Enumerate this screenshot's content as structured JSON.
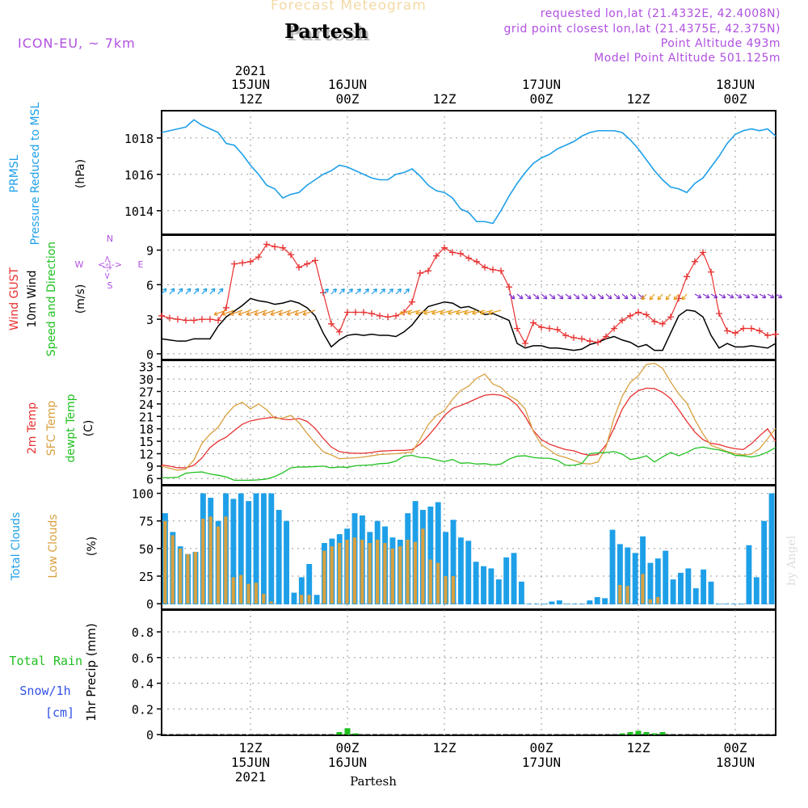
{
  "header": {
    "super_title": "Forecast Meteogram",
    "location": "Partesh",
    "model": "ICON-EU, ~ 7km",
    "requested": "requested lon,lat (21.4332E, 42.4008N)",
    "grid_point": "grid point closest lon,lat (21.4375E, 42.375N)",
    "point_altitude": "Point Altitude 493m",
    "model_altitude": "Model Point Altitude 501.125m"
  },
  "colors": {
    "pressure": "#1ea0e8",
    "gust": "#e83030",
    "wind": "#000000",
    "dir_label": "#20c020",
    "temp2m": "#e83030",
    "sfc": "#d8a040",
    "dewpt": "#20c020",
    "total": "#1ea0e8",
    "low": "#d8a040",
    "rain": "#20c020",
    "snow": "#3050e8",
    "compass": "#b050e0"
  },
  "time_axis": {
    "top_ticks": [
      {
        "line1": "2021",
        "line2": "15JUN",
        "line3": "12Z"
      },
      {
        "line1": "",
        "line2": "16JUN",
        "line3": "00Z"
      },
      {
        "line1": "",
        "line2": "",
        "line3": "12Z"
      },
      {
        "line1": "",
        "line2": "17JUN",
        "line3": "00Z"
      },
      {
        "line1": "",
        "line2": "",
        "line3": "12Z"
      },
      {
        "line1": "",
        "line2": "18JUN",
        "line3": "00Z"
      }
    ],
    "bottom_ticks": [
      {
        "line1": "12Z",
        "line2": "15JUN",
        "line3": "2021"
      },
      {
        "line1": "00Z",
        "line2": "16JUN",
        "line3": ""
      },
      {
        "line1": "12Z",
        "line2": "",
        "line3": ""
      },
      {
        "line1": "00Z",
        "line2": "17JUN",
        "line3": ""
      },
      {
        "line1": "12Z",
        "line2": "",
        "line3": ""
      },
      {
        "line1": "00Z",
        "line2": "18JUN",
        "line3": ""
      }
    ],
    "tick_hours": [
      12,
      24,
      36,
      48,
      60,
      72
    ],
    "x_range_hours": [
      1,
      77
    ],
    "footer_label": "Partesh"
  },
  "watermark": "by Angel",
  "chart_data": [
    {
      "type": "line",
      "id": "pressure",
      "ylabel_lines": [
        "PRMSL",
        "Pressure Reduced to MSL",
        "(hPa)"
      ],
      "yticks": [
        1014,
        1016,
        1018
      ],
      "ylim": [
        1012.7,
        1019.5
      ],
      "series": [
        {
          "name": "PRMSL",
          "values": [
            1018.3,
            1018.4,
            1018.5,
            1018.6,
            1019.0,
            1018.7,
            1018.5,
            1018.3,
            1017.7,
            1017.6,
            1017.1,
            1016.5,
            1016.0,
            1015.4,
            1015.2,
            1014.7,
            1014.9,
            1015.0,
            1015.4,
            1015.7,
            1016.0,
            1016.2,
            1016.5,
            1016.4,
            1016.2,
            1016.0,
            1015.8,
            1015.7,
            1015.7,
            1016.0,
            1016.1,
            1016.3,
            1015.9,
            1015.4,
            1015.1,
            1015.0,
            1014.7,
            1014.1,
            1013.9,
            1013.4,
            1013.4,
            1013.3,
            1014.0,
            1014.8,
            1015.5,
            1016.1,
            1016.6,
            1016.9,
            1017.1,
            1017.4,
            1017.6,
            1017.8,
            1018.1,
            1018.3,
            1018.4,
            1018.4,
            1018.4,
            1018.3,
            1017.9,
            1017.4,
            1016.8,
            1016.2,
            1015.7,
            1015.3,
            1015.2,
            1015.0,
            1015.5,
            1015.8,
            1016.4,
            1017.0,
            1017.7,
            1018.2,
            1018.4,
            1018.5,
            1018.4,
            1018.5,
            1018.1
          ]
        }
      ]
    },
    {
      "type": "line",
      "id": "wind",
      "ylabel_lines": [
        "Wind GUST",
        "10m Wind",
        "Speed and Direction",
        "(m/s)"
      ],
      "compass": [
        "N",
        "S",
        "W",
        "E",
        "<-|->"
      ],
      "yticks": [
        0,
        3,
        6,
        9
      ],
      "ylim": [
        -0.5,
        10.3
      ],
      "series": [
        {
          "name": "Wind GUST",
          "values": [
            3.3,
            3.1,
            3.0,
            2.9,
            2.9,
            3.0,
            3.0,
            2.9,
            4.0,
            7.8,
            7.9,
            8.0,
            8.4,
            9.5,
            9.3,
            9.2,
            8.6,
            7.5,
            7.8,
            8.1,
            5.3,
            2.6,
            1.9,
            3.6,
            3.6,
            3.6,
            3.5,
            3.3,
            3.2,
            3.3,
            3.6,
            4.5,
            7.0,
            7.2,
            8.5,
            9.2,
            8.8,
            8.7,
            8.3,
            8.0,
            7.5,
            7.3,
            7.2,
            5.8,
            2.2,
            0.9,
            2.7,
            2.3,
            2.2,
            2.1,
            1.6,
            1.4,
            1.3,
            1.1,
            1.0,
            1.5,
            2.2,
            2.9,
            3.3,
            3.6,
            3.4,
            2.8,
            2.6,
            3.2,
            4.8,
            6.7,
            8.0,
            8.8,
            7.1,
            3.5,
            2.0,
            1.8,
            2.2,
            2.2,
            2.0,
            1.6,
            1.7
          ]
        },
        {
          "name": "10m Wind",
          "values": [
            1.3,
            1.2,
            1.1,
            1.1,
            1.3,
            1.3,
            1.3,
            2.4,
            3.2,
            3.7,
            4.2,
            4.8,
            4.6,
            4.5,
            4.3,
            4.4,
            4.6,
            4.4,
            4.0,
            3.3,
            1.8,
            0.6,
            1.2,
            1.6,
            1.7,
            1.6,
            1.7,
            1.6,
            1.6,
            1.5,
            1.9,
            2.5,
            3.4,
            4.1,
            4.3,
            4.5,
            4.4,
            4.0,
            4.1,
            3.8,
            3.4,
            3.5,
            3.2,
            2.9,
            0.9,
            0.5,
            0.7,
            0.7,
            0.5,
            0.5,
            0.4,
            0.3,
            0.4,
            0.8,
            1.0,
            1.3,
            1.5,
            1.2,
            1.0,
            0.6,
            0.8,
            0.3,
            0.3,
            1.8,
            3.3,
            3.8,
            3.7,
            3.2,
            1.6,
            0.5,
            0.9,
            0.6,
            0.6,
            0.7,
            0.6,
            0.5,
            0.9
          ]
        }
      ]
    },
    {
      "type": "line",
      "id": "temperature",
      "ylabel_lines": [
        "2m Temp",
        "SFC Temp",
        "dewpt Temp",
        "(C)"
      ],
      "yticks": [
        6,
        9,
        12,
        15,
        18,
        21,
        24,
        27,
        30,
        33
      ],
      "ylim": [
        4.5,
        34.5
      ],
      "series": [
        {
          "name": "2m Temp",
          "values": [
            9.3,
            9.0,
            8.6,
            8.6,
            9.2,
            11.0,
            13.5,
            15.0,
            16.0,
            17.6,
            19.1,
            19.9,
            20.3,
            20.6,
            20.8,
            20.3,
            20.2,
            20.5,
            19.8,
            18.1,
            15.7,
            13.6,
            12.5,
            12.2,
            12.1,
            12.1,
            12.3,
            12.6,
            12.7,
            12.8,
            12.8,
            13.0,
            14.3,
            16.3,
            18.6,
            21.2,
            22.9,
            23.6,
            24.4,
            25.3,
            26.1,
            26.3,
            26.1,
            25.3,
            23.7,
            21.0,
            17.6,
            15.4,
            14.3,
            13.6,
            13.0,
            12.7,
            12.0,
            11.6,
            11.8,
            14.1,
            18.2,
            22.7,
            25.7,
            27.2,
            27.8,
            27.7,
            26.8,
            25.3,
            22.6,
            19.8,
            17.2,
            15.4,
            14.5,
            14.2,
            13.6,
            13.2,
            13.0,
            14.4,
            16.3,
            18.0,
            15.0
          ]
        },
        {
          "name": "SFC Temp",
          "values": [
            9.0,
            8.5,
            8.0,
            8.3,
            10.5,
            14.5,
            16.7,
            18.4,
            21.4,
            23.5,
            24.4,
            22.8,
            24.0,
            22.6,
            20.5,
            20.6,
            21.2,
            19.5,
            16.9,
            14.6,
            12.5,
            11.7,
            10.8,
            10.9,
            11.0,
            11.2,
            11.5,
            11.8,
            11.9,
            12.0,
            12.2,
            12.4,
            15.5,
            19.0,
            21.2,
            22.4,
            25.1,
            27.2,
            28.3,
            30.2,
            31.2,
            28.8,
            28.0,
            26.0,
            24.9,
            22.8,
            17.4,
            14.2,
            12.9,
            11.6,
            11.1,
            10.4,
            9.7,
            9.5,
            10.0,
            13.6,
            20.6,
            25.8,
            29.2,
            30.8,
            33.5,
            33.8,
            32.6,
            29.3,
            26.4,
            24.2,
            20.2,
            16.8,
            14.0,
            13.3,
            12.5,
            12.0,
            11.7,
            11.9,
            13.2,
            15.6,
            18.1
          ]
        },
        {
          "name": "dewpt Temp",
          "values": [
            6.2,
            6.2,
            6.3,
            7.3,
            7.5,
            7.6,
            7.1,
            6.8,
            6.4,
            5.6,
            5.6,
            5.6,
            5.7,
            5.9,
            6.5,
            7.4,
            8.6,
            8.8,
            8.8,
            8.9,
            9.0,
            8.6,
            8.8,
            8.7,
            9.1,
            9.2,
            9.3,
            9.6,
            9.7,
            10.2,
            11.4,
            11.6,
            11.1,
            11.0,
            10.5,
            10.1,
            10.6,
            9.7,
            9.8,
            9.5,
            9.6,
            9.3,
            9.5,
            10.7,
            11.4,
            11.5,
            11.1,
            10.9,
            10.9,
            10.4,
            9.2,
            9.2,
            9.6,
            12.0,
            12.2,
            12.3,
            12.5,
            11.9,
            10.6,
            10.9,
            11.5,
            10.0,
            11.2,
            12.3,
            11.5,
            12.3,
            13.3,
            13.6,
            13.2,
            12.9,
            12.4,
            11.6,
            11.5,
            11.2,
            11.6,
            12.4,
            13.5
          ]
        }
      ]
    },
    {
      "type": "bar",
      "id": "clouds",
      "ylabel_lines": [
        "Total Clouds",
        "Low Clouds",
        "(%)"
      ],
      "yticks": [
        0,
        25,
        50,
        75,
        100
      ],
      "ylim": [
        -5,
        107
      ],
      "series": [
        {
          "name": "Total Clouds",
          "values": [
            82,
            65,
            52,
            45,
            47,
            100,
            96,
            75,
            100,
            95,
            100,
            93,
            100,
            100,
            100,
            85,
            75,
            10,
            24,
            36,
            8,
            55,
            59,
            63,
            68,
            82,
            80,
            65,
            75,
            70,
            60,
            58,
            82,
            93,
            85,
            88,
            92,
            65,
            76,
            60,
            57,
            38,
            34,
            32,
            22,
            42,
            46,
            20,
            0,
            0,
            0,
            2,
            3,
            0,
            0,
            0,
            3,
            6,
            5,
            67,
            54,
            51,
            46,
            61,
            37,
            41,
            48,
            22,
            28,
            32,
            14,
            31,
            20,
            0,
            0,
            0,
            0,
            53,
            24,
            75,
            100
          ]
        },
        {
          "name": "Low Clouds",
          "values": [
            75,
            62,
            50,
            45,
            47,
            77,
            79,
            70,
            79,
            24,
            26,
            18,
            19,
            9,
            2,
            0,
            0,
            0,
            8,
            8,
            0,
            48,
            52,
            55,
            58,
            60,
            58,
            55,
            58,
            55,
            50,
            52,
            58,
            56,
            68,
            40,
            37,
            25,
            25,
            0,
            0,
            0,
            0,
            0,
            0,
            0,
            0,
            0,
            0,
            0,
            0,
            0,
            0,
            0,
            0,
            0,
            0,
            0,
            0,
            0,
            17,
            16,
            0,
            27,
            4,
            6,
            0,
            0,
            0,
            0,
            0,
            0,
            0,
            0,
            0,
            0,
            0,
            0,
            0,
            0,
            0
          ]
        }
      ]
    },
    {
      "type": "bar",
      "id": "precip",
      "ylabel_lines": [
        "1hr Precip (mm)"
      ],
      "legend": [
        "Total",
        "Rain",
        "Snow/1h",
        "[cm]"
      ],
      "yticks": [
        "0",
        "0.2",
        "0.4",
        "0.6",
        "0.8"
      ],
      "ylim": [
        -0.005,
        0.97
      ],
      "series": [
        {
          "name": "Total Rain",
          "values": [
            {
              "h": 23,
              "v": 0.02
            },
            {
              "h": 24,
              "v": 0.05
            },
            {
              "h": 25,
              "v": 0.01
            },
            {
              "h": 58,
              "v": 0.01
            },
            {
              "h": 59,
              "v": 0.02
            },
            {
              "h": 60,
              "v": 0.03
            },
            {
              "h": 61,
              "v": 0.02
            },
            {
              "h": 62,
              "v": 0.01
            },
            {
              "h": 63,
              "v": 0.02
            }
          ]
        }
      ]
    }
  ]
}
